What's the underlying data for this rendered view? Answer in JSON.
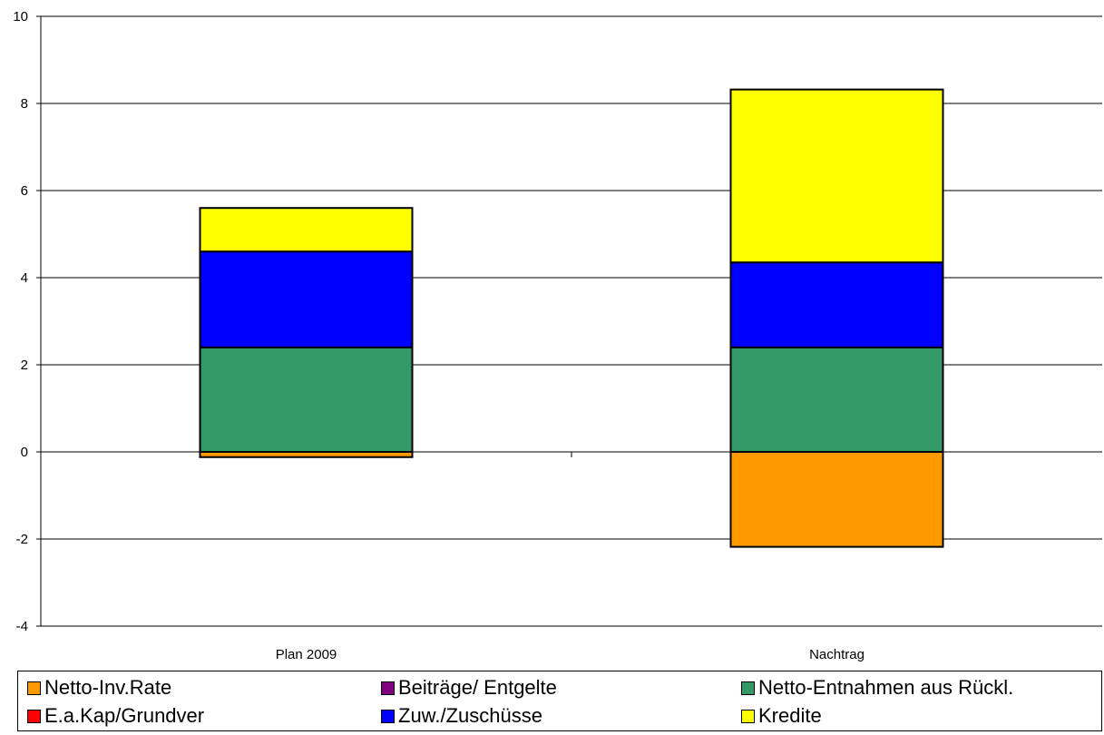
{
  "chart_data": {
    "type": "bar",
    "stacked": true,
    "categories": [
      "Plan 2009",
      "Nachtrag"
    ],
    "ylim": [
      -4,
      10
    ],
    "yticks": [
      -4,
      -2,
      0,
      2,
      4,
      6,
      8,
      10
    ],
    "grid": true,
    "legend_placement": "bottom",
    "series": [
      {
        "name": "Netto-Inv.Rate",
        "color": "#FF9900",
        "values": [
          -0.12,
          -2.18
        ]
      },
      {
        "name": "Beiträge/ Entgelte",
        "color": "#800080",
        "values": [
          0,
          0
        ]
      },
      {
        "name": "Netto-Entnahmen aus Rückl.",
        "color": "#339966",
        "values": [
          2.4,
          2.4
        ]
      },
      {
        "name": "E.a.Kap/Grundver",
        "color": "#FF0000",
        "values": [
          0,
          0
        ]
      },
      {
        "name": "Zuw./Zuschüsse",
        "color": "#0000FF",
        "values": [
          2.2,
          1.95
        ]
      },
      {
        "name": "Kredite",
        "color": "#FFFF00",
        "values": [
          1.0,
          3.97
        ]
      }
    ]
  }
}
